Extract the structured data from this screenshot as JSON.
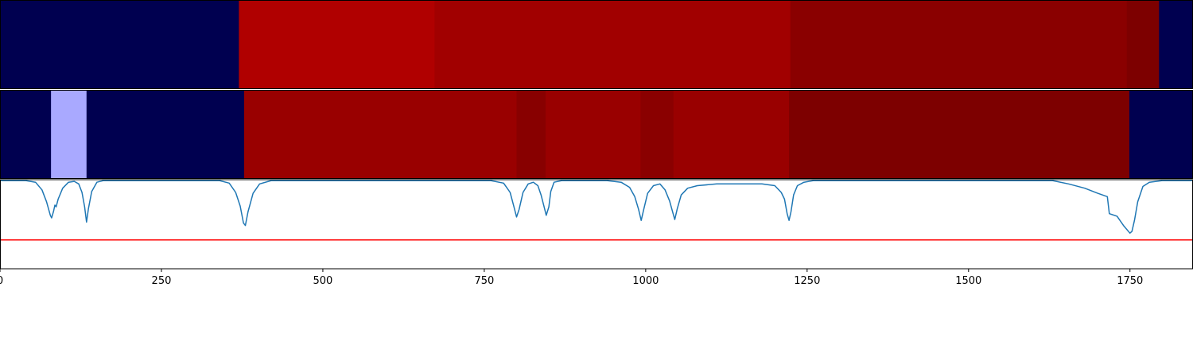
{
  "chart_data": [
    {
      "type": "heatmap",
      "colormap": "seismic",
      "segments": [
        {
          "x0": 0,
          "x1": 370,
          "color": "#000050"
        },
        {
          "x0": 370,
          "x1": 673,
          "color": "#b00000"
        },
        {
          "x0": 673,
          "x1": 1224,
          "color": "#a10000"
        },
        {
          "x0": 1224,
          "x1": 1745,
          "color": "#8a0000"
        },
        {
          "x0": 1745,
          "x1": 1795,
          "color": "#7d0000"
        },
        {
          "x0": 1795,
          "x1": 1847,
          "color": "#000050"
        }
      ]
    },
    {
      "type": "heatmap",
      "colormap": "seismic",
      "segments": [
        {
          "x0": 0,
          "x1": 79,
          "color": "#000050"
        },
        {
          "x0": 79,
          "x1": 134,
          "color": "#a9a9ff"
        },
        {
          "x0": 134,
          "x1": 378,
          "color": "#000050"
        },
        {
          "x0": 378,
          "x1": 800,
          "color": "#990000"
        },
        {
          "x0": 800,
          "x1": 845,
          "color": "#880000"
        },
        {
          "x0": 845,
          "x1": 992,
          "color": "#990000"
        },
        {
          "x0": 992,
          "x1": 1043,
          "color": "#8a0000"
        },
        {
          "x0": 1043,
          "x1": 1222,
          "color": "#990000"
        },
        {
          "x0": 1222,
          "x1": 1749,
          "color": "#7d0000"
        },
        {
          "x0": 1749,
          "x1": 1847,
          "color": "#000050"
        }
      ]
    },
    {
      "type": "line",
      "xlim": [
        0,
        1847
      ],
      "ylim": [
        -0.05,
        1.0
      ],
      "grid": false,
      "x_ticks": [
        0,
        250,
        500,
        750,
        1000,
        1250,
        1500,
        1750
      ],
      "x_tick_labels": [
        "0",
        "250",
        "500",
        "750",
        "1000",
        "1250",
        "1500",
        "1750"
      ],
      "threshold": {
        "value": 0.29,
        "color": "#ff0000"
      },
      "series": [
        {
          "color": "#1f77b4",
          "points": [
            [
              0,
              0.99
            ],
            [
              40,
              0.99
            ],
            [
              55,
              0.97
            ],
            [
              65,
              0.88
            ],
            [
              72,
              0.74
            ],
            [
              78,
              0.58
            ],
            [
              80,
              0.55
            ],
            [
              83,
              0.63
            ],
            [
              85,
              0.7
            ],
            [
              87,
              0.68
            ],
            [
              90,
              0.77
            ],
            [
              97,
              0.9
            ],
            [
              106,
              0.97
            ],
            [
              115,
              0.98
            ],
            [
              122,
              0.95
            ],
            [
              127,
              0.85
            ],
            [
              131,
              0.68
            ],
            [
              134,
              0.5
            ],
            [
              137,
              0.66
            ],
            [
              142,
              0.86
            ],
            [
              150,
              0.97
            ],
            [
              160,
              0.99
            ],
            [
              340,
              0.99
            ],
            [
              355,
              0.96
            ],
            [
              365,
              0.85
            ],
            [
              372,
              0.69
            ],
            [
              377,
              0.49
            ],
            [
              380,
              0.46
            ],
            [
              384,
              0.62
            ],
            [
              392,
              0.84
            ],
            [
              402,
              0.95
            ],
            [
              420,
              0.99
            ],
            [
              760,
              0.99
            ],
            [
              780,
              0.96
            ],
            [
              790,
              0.85
            ],
            [
              796,
              0.68
            ],
            [
              800,
              0.56
            ],
            [
              804,
              0.65
            ],
            [
              810,
              0.85
            ],
            [
              818,
              0.95
            ],
            [
              826,
              0.97
            ],
            [
              833,
              0.93
            ],
            [
              838,
              0.82
            ],
            [
              843,
              0.67
            ],
            [
              846,
              0.58
            ],
            [
              850,
              0.68
            ],
            [
              853,
              0.86
            ],
            [
              858,
              0.97
            ],
            [
              870,
              0.99
            ],
            [
              940,
              0.99
            ],
            [
              962,
              0.97
            ],
            [
              975,
              0.91
            ],
            [
              983,
              0.8
            ],
            [
              989,
              0.65
            ],
            [
              993,
              0.52
            ],
            [
              997,
              0.65
            ],
            [
              1003,
              0.84
            ],
            [
              1012,
              0.93
            ],
            [
              1022,
              0.95
            ],
            [
              1030,
              0.88
            ],
            [
              1037,
              0.75
            ],
            [
              1042,
              0.61
            ],
            [
              1045,
              0.53
            ],
            [
              1049,
              0.66
            ],
            [
              1055,
              0.82
            ],
            [
              1065,
              0.9
            ],
            [
              1080,
              0.93
            ],
            [
              1110,
              0.95
            ],
            [
              1180,
              0.95
            ],
            [
              1200,
              0.93
            ],
            [
              1210,
              0.85
            ],
            [
              1215,
              0.77
            ],
            [
              1219,
              0.6
            ],
            [
              1222,
              0.52
            ],
            [
              1225,
              0.62
            ],
            [
              1229,
              0.82
            ],
            [
              1235,
              0.93
            ],
            [
              1245,
              0.97
            ],
            [
              1260,
              0.99
            ],
            [
              1630,
              0.99
            ],
            [
              1655,
              0.95
            ],
            [
              1680,
              0.9
            ],
            [
              1700,
              0.84
            ],
            [
              1715,
              0.8
            ],
            [
              1718,
              0.6
            ],
            [
              1730,
              0.57
            ],
            [
              1740,
              0.46
            ],
            [
              1750,
              0.37
            ],
            [
              1753,
              0.39
            ],
            [
              1757,
              0.52
            ],
            [
              1762,
              0.74
            ],
            [
              1770,
              0.92
            ],
            [
              1780,
              0.97
            ],
            [
              1800,
              0.99
            ],
            [
              1847,
              0.99
            ]
          ]
        }
      ]
    }
  ]
}
